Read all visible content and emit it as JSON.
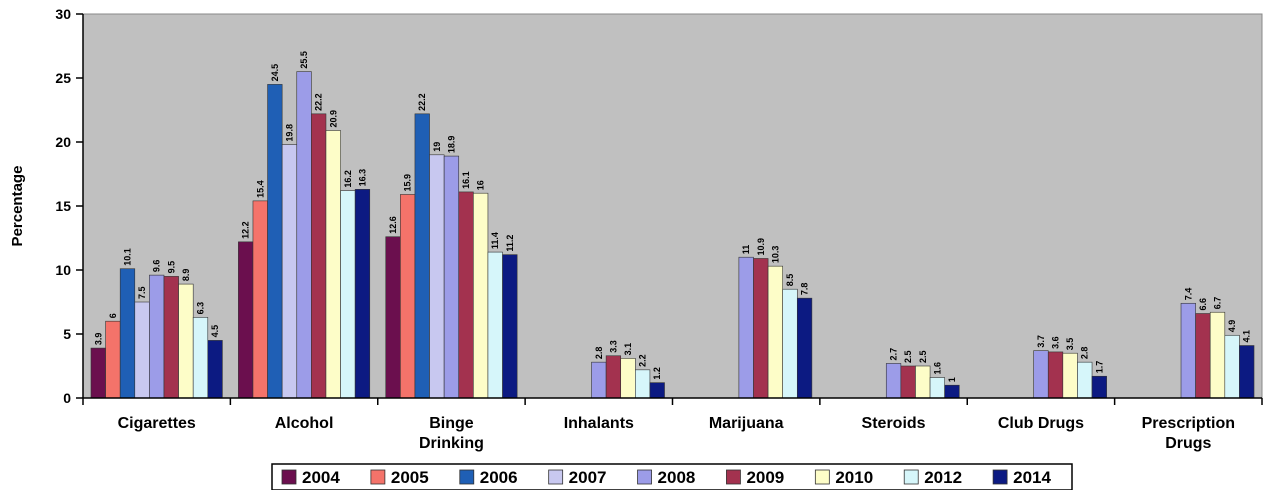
{
  "chart_data": {
    "type": "bar",
    "title": "",
    "xlabel": "",
    "ylabel": "Percentage",
    "ylim": [
      0,
      30
    ],
    "yticks": [
      0,
      5,
      10,
      15,
      20,
      25,
      30
    ],
    "grid": false,
    "legend_position": "bottom",
    "categories": [
      [
        "Cigarettes"
      ],
      [
        "Alcohol"
      ],
      [
        "Binge",
        "Drinking"
      ],
      [
        "Inhalants"
      ],
      [
        "Marijuana"
      ],
      [
        "Steroids"
      ],
      [
        "Club Drugs"
      ],
      [
        "Prescription",
        "Drugs"
      ]
    ],
    "series": [
      {
        "name": "2004",
        "color": "#6b0f4e",
        "values": [
          3.9,
          12.2,
          12.6,
          null,
          null,
          null,
          null,
          null
        ]
      },
      {
        "name": "2005",
        "color": "#f4736a",
        "values": [
          6,
          15.4,
          15.9,
          null,
          null,
          null,
          null,
          null
        ]
      },
      {
        "name": "2006",
        "color": "#1f5fb5",
        "values": [
          10.1,
          24.5,
          22.2,
          null,
          null,
          null,
          null,
          null
        ]
      },
      {
        "name": "2007",
        "color": "#c8c8f0",
        "values": [
          7.5,
          19.8,
          19,
          null,
          null,
          null,
          null,
          null
        ]
      },
      {
        "name": "2008",
        "color": "#9c9ce8",
        "values": [
          9.6,
          25.5,
          18.9,
          2.8,
          11,
          2.7,
          3.7,
          7.4
        ]
      },
      {
        "name": "2009",
        "color": "#a3324f",
        "values": [
          9.5,
          22.2,
          16.1,
          3.3,
          10.9,
          2.5,
          3.6,
          6.6
        ]
      },
      {
        "name": "2010",
        "color": "#fdfdc8",
        "values": [
          8.9,
          20.9,
          16,
          3.1,
          10.3,
          2.5,
          3.5,
          6.7
        ]
      },
      {
        "name": "2012",
        "color": "#d6f6fa",
        "values": [
          6.3,
          16.2,
          11.4,
          2.2,
          8.5,
          1.6,
          2.8,
          4.9
        ]
      },
      {
        "name": "2014",
        "color": "#0c1a82",
        "values": [
          4.5,
          16.3,
          11.2,
          1.2,
          7.8,
          1,
          1.7,
          4.1
        ]
      }
    ],
    "value_labels": [
      [
        "3.9",
        "12.2",
        "12.6",
        null,
        null,
        null,
        null,
        null
      ],
      [
        "6",
        "15.4",
        "15.9",
        null,
        null,
        null,
        null,
        null
      ],
      [
        "10.1",
        "24.5",
        "22.2",
        null,
        null,
        null,
        null,
        null
      ],
      [
        "7.5",
        "19.8",
        "19",
        null,
        null,
        null,
        null,
        null
      ],
      [
        "9.6",
        "25.5",
        "18.9",
        "2.8",
        "11",
        "2.7",
        "3.7",
        "7.4"
      ],
      [
        "9.5",
        "22.2",
        "16.1",
        "3.3",
        "10.9",
        "2.5",
        "3.6",
        "6.6"
      ],
      [
        "8.9",
        "20.9",
        "16",
        "3.1",
        "10.3",
        "2.5",
        "3.5",
        "6.7"
      ],
      [
        "6.3",
        "16.2",
        "11.4",
        "2.2",
        "8.5",
        "1.6",
        "2.8",
        "4.9"
      ],
      [
        "4.5",
        "16.3",
        "11.2",
        "1.2",
        "7.8",
        "1",
        "1.7",
        "4.1"
      ]
    ],
    "colors": {
      "plot_background": "#c0c0c0",
      "bar_outline": "#333333"
    }
  }
}
